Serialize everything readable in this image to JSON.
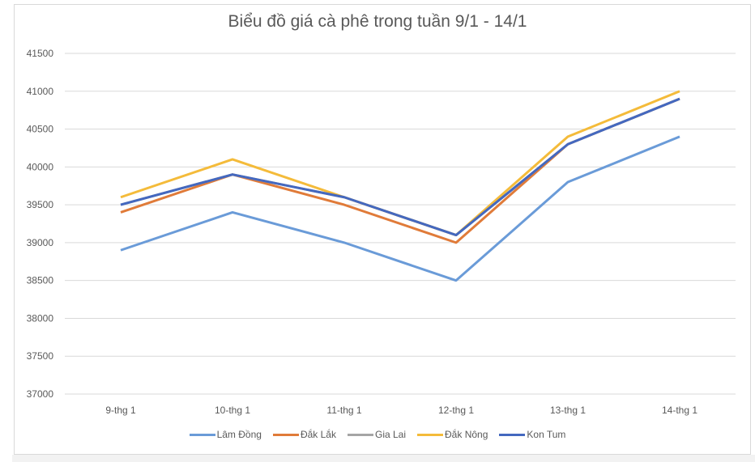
{
  "chart_data": {
    "type": "line",
    "title": "Biểu đồ giá cà phê trong tuần 9/1 - 14/1",
    "xlabel": "",
    "ylabel": "",
    "categories": [
      "9-thg 1",
      "10-thg 1",
      "11-thg 1",
      "12-thg 1",
      "13-thg 1",
      "14-thg 1"
    ],
    "ylim": [
      37000,
      41500
    ],
    "yticks": [
      37000,
      37500,
      38000,
      38500,
      39000,
      39500,
      40000,
      40500,
      41000,
      41500
    ],
    "grid": true,
    "legend_position": "bottom",
    "series": [
      {
        "name": "Lâm Đồng",
        "color": "#6a9bd8",
        "values": [
          38900,
          39400,
          39000,
          38500,
          39800,
          40400
        ]
      },
      {
        "name": "Đắk Lắk",
        "color": "#e07b39",
        "values": [
          39400,
          39900,
          39500,
          39000,
          40300,
          40900
        ]
      },
      {
        "name": "Gia Lai",
        "color": "#a5a5a5",
        "values": [
          39500,
          39900,
          39600,
          39100,
          40300,
          40900
        ]
      },
      {
        "name": "Đắk Nông",
        "color": "#f4bb3a",
        "values": [
          39600,
          40100,
          39600,
          39100,
          40400,
          41000
        ]
      },
      {
        "name": "Kon Tum",
        "color": "#4468bf",
        "values": [
          39500,
          39900,
          39600,
          39100,
          40300,
          40900
        ]
      }
    ]
  }
}
